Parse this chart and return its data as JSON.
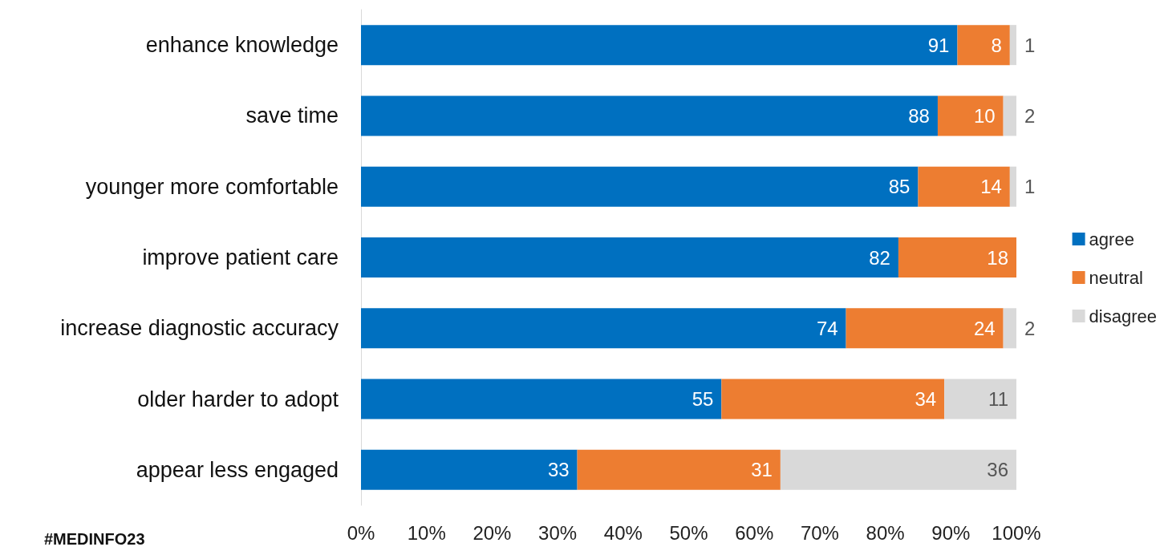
{
  "chart_data": {
    "type": "bar",
    "orientation": "horizontal",
    "stacked": true,
    "categories": [
      "enhance knowledge",
      "save time",
      "younger more comfortable",
      "improve patient care",
      "increase diagnostic accuracy",
      "older harder to adopt",
      "appear less engaged"
    ],
    "series": [
      {
        "name": "agree",
        "color": "#0070c0",
        "values": [
          91,
          88,
          85,
          82,
          74,
          55,
          33
        ]
      },
      {
        "name": "neutral",
        "color": "#ed7d31",
        "values": [
          8,
          10,
          14,
          18,
          24,
          34,
          31
        ]
      },
      {
        "name": "disagree",
        "color": "#d9d9d9",
        "values": [
          1,
          2,
          1,
          null,
          2,
          11,
          36
        ]
      }
    ],
    "xlim": [
      0,
      100
    ],
    "xticks": [
      {
        "value": 0,
        "label": "0%"
      },
      {
        "value": 10,
        "label": "10%"
      },
      {
        "value": 20,
        "label": "20%"
      },
      {
        "value": 30,
        "label": "30%"
      },
      {
        "value": 40,
        "label": "40%"
      },
      {
        "value": 50,
        "label": "50%"
      },
      {
        "value": 60,
        "label": "60%"
      },
      {
        "value": 70,
        "label": "70%"
      },
      {
        "value": 80,
        "label": "80%"
      },
      {
        "value": 90,
        "label": "90%"
      },
      {
        "value": 100,
        "label": "100%"
      }
    ],
    "data_labels": true,
    "grid": false,
    "legend": "right",
    "annotations": [
      "#MEDINFO23"
    ]
  }
}
